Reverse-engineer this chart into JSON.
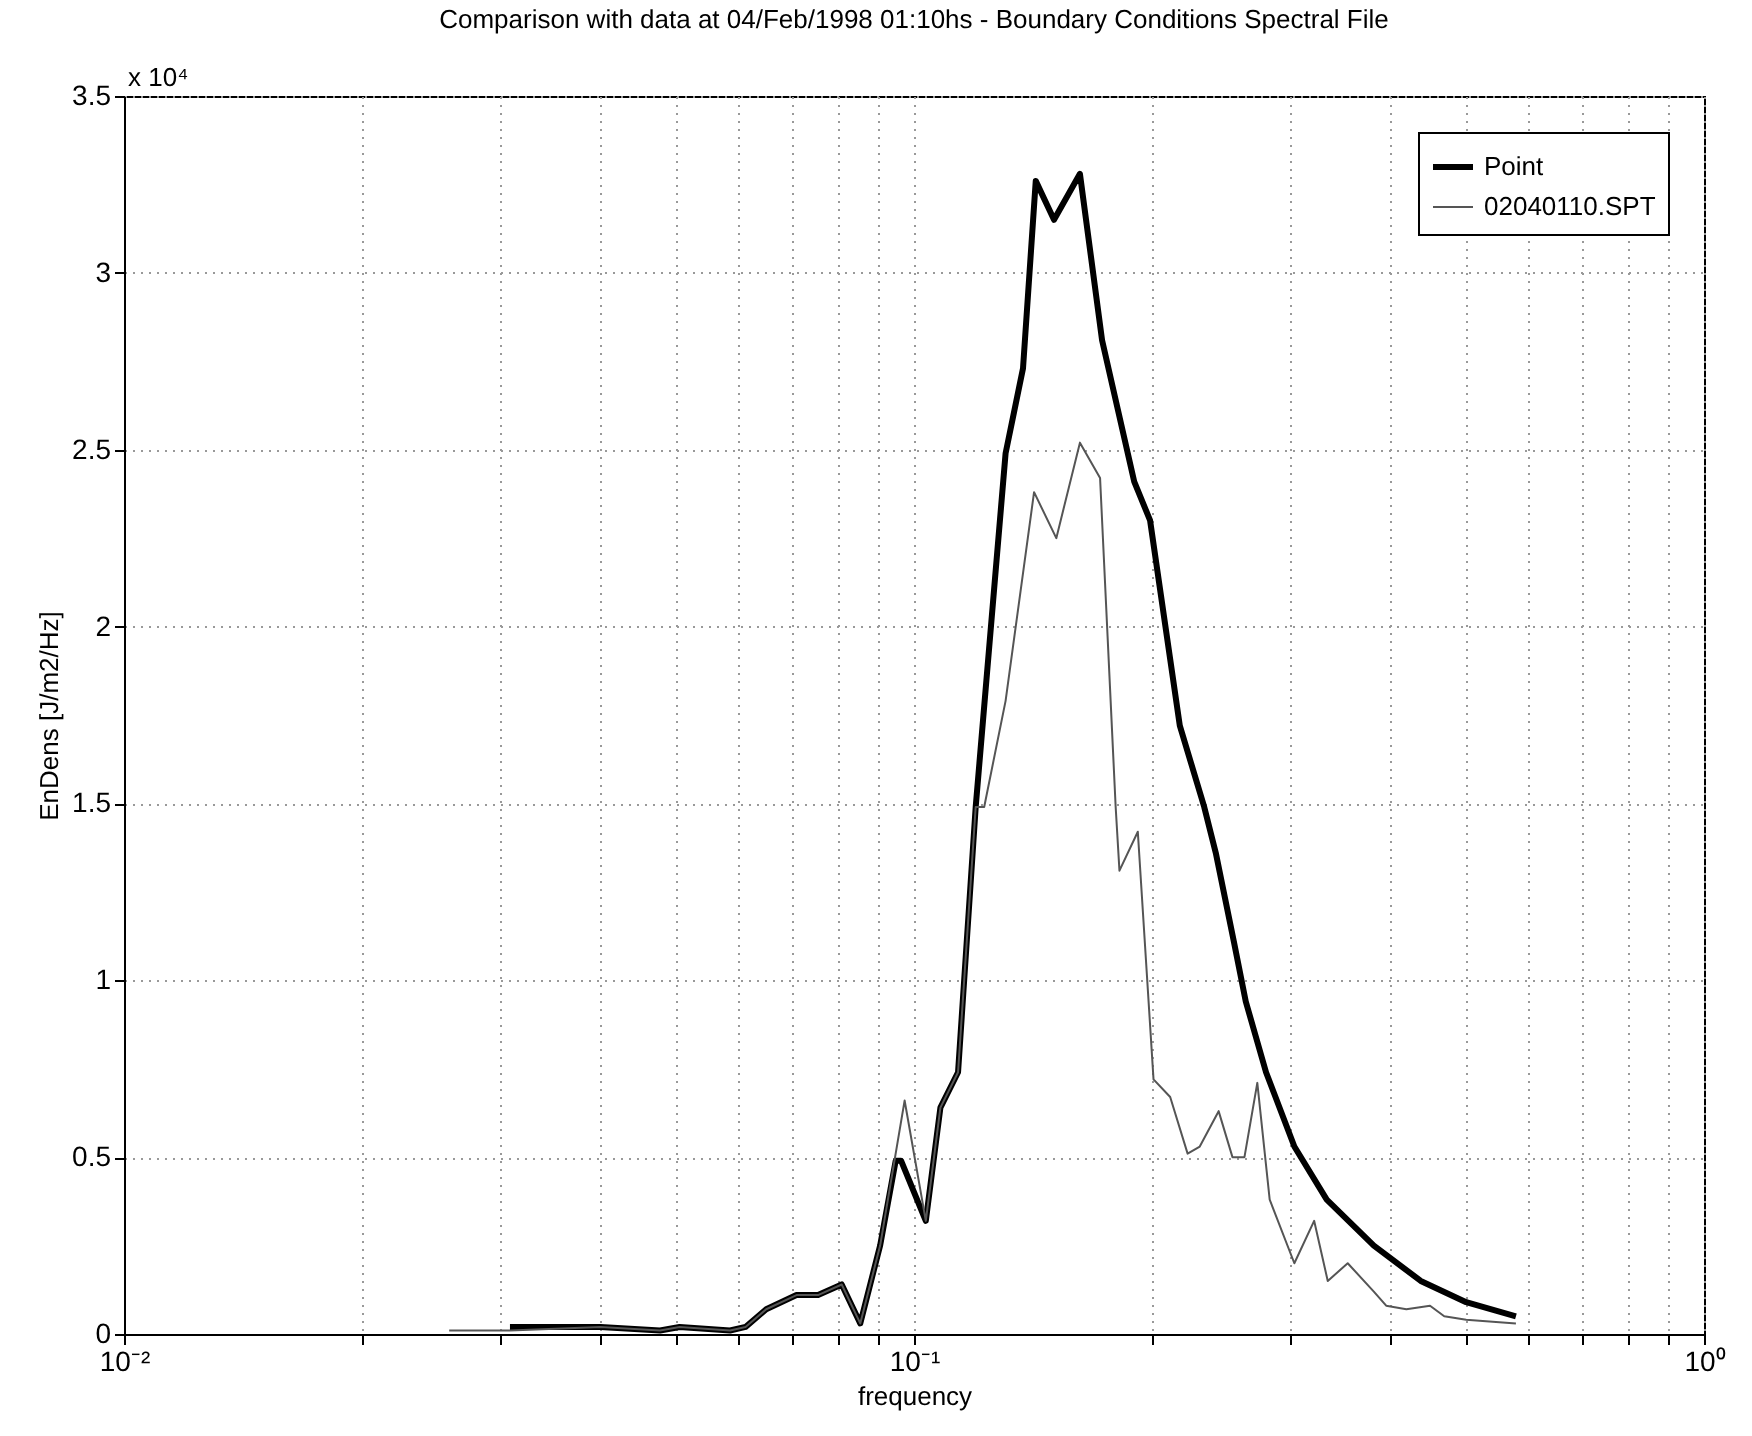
{
  "chart_data": {
    "type": "line",
    "title": "Comparison with data at 04/Feb/1998 01:10hs - Boundary Conditions Spectral File",
    "xlabel": "frequency",
    "ylabel": "EnDens [J/m2/Hz]",
    "annotations": [
      "x 10⁴"
    ],
    "log": "x",
    "xlim": [
      0.01,
      1
    ],
    "ylim": [
      0,
      3.5
    ],
    "xticks": [
      {
        "value": 0.01,
        "label": "10⁻²"
      },
      {
        "value": 0.02,
        "label": null
      },
      {
        "value": 0.03,
        "label": null
      },
      {
        "value": 0.04,
        "label": null
      },
      {
        "value": 0.05,
        "label": null
      },
      {
        "value": 0.06,
        "label": null
      },
      {
        "value": 0.07,
        "label": null
      },
      {
        "value": 0.08,
        "label": null
      },
      {
        "value": 0.09,
        "label": null
      },
      {
        "value": 0.1,
        "label": "10⁻¹"
      },
      {
        "value": 0.2,
        "label": null
      },
      {
        "value": 0.3,
        "label": null
      },
      {
        "value": 0.4,
        "label": null
      },
      {
        "value": 0.5,
        "label": null
      },
      {
        "value": 0.6,
        "label": null
      },
      {
        "value": 0.7,
        "label": null
      },
      {
        "value": 0.8,
        "label": null
      },
      {
        "value": 0.9,
        "label": null
      },
      {
        "value": 1,
        "label": "10⁰"
      }
    ],
    "yticks": [
      0,
      0.5,
      1,
      1.5,
      2,
      2.5,
      3,
      3.5
    ],
    "grid": true,
    "legend": "top right",
    "marker": "none",
    "line_style": "solid",
    "series": [
      {
        "name": "Point",
        "color": "#000000",
        "x": [
          0.0308,
          0.0401,
          0.0477,
          0.0505,
          0.0585,
          0.0612,
          0.065,
          0.071,
          0.0756,
          0.081,
          0.0855,
          0.0906,
          0.0948,
          0.0963,
          0.1035,
          0.108,
          0.1137,
          0.1197,
          0.1306,
          0.1374,
          0.1426,
          0.1504,
          0.1622,
          0.173,
          0.19,
          0.199,
          0.217,
          0.233,
          0.241,
          0.254,
          0.263,
          0.279,
          0.303,
          0.333,
          0.382,
          0.438,
          0.5,
          0.578
        ],
        "values": [
          0.02,
          0.02,
          0.01,
          0.02,
          0.01,
          0.02,
          0.07,
          0.11,
          0.11,
          0.14,
          0.03,
          0.25,
          0.49,
          0.49,
          0.32,
          0.64,
          0.74,
          1.49,
          2.49,
          2.73,
          3.26,
          3.15,
          3.28,
          2.81,
          2.41,
          2.3,
          1.72,
          1.49,
          1.36,
          1.11,
          0.94,
          0.74,
          0.53,
          0.38,
          0.25,
          0.15,
          0.09,
          0.05
        ]
      },
      {
        "name": "02040110.SPT",
        "color": "#555555",
        "x": [
          0.0258,
          0.0308,
          0.0401,
          0.0477,
          0.0505,
          0.0585,
          0.0612,
          0.065,
          0.071,
          0.0756,
          0.081,
          0.0855,
          0.0906,
          0.0973,
          0.1035,
          0.108,
          0.1137,
          0.1197,
          0.1227,
          0.1306,
          0.1419,
          0.1514,
          0.1622,
          0.172,
          0.18,
          0.182,
          0.192,
          0.201,
          0.211,
          0.222,
          0.23,
          0.243,
          0.253,
          0.262,
          0.272,
          0.282,
          0.303,
          0.321,
          0.334,
          0.354,
          0.382,
          0.396,
          0.42,
          0.45,
          0.469,
          0.5,
          0.578
        ],
        "values": [
          0.01,
          0.01,
          0.02,
          0.01,
          0.02,
          0.01,
          0.02,
          0.07,
          0.11,
          0.11,
          0.14,
          0.03,
          0.25,
          0.66,
          0.32,
          0.64,
          0.74,
          1.49,
          1.49,
          1.79,
          2.38,
          2.25,
          2.52,
          2.42,
          1.49,
          1.31,
          1.42,
          0.72,
          0.67,
          0.51,
          0.53,
          0.63,
          0.5,
          0.5,
          0.71,
          0.38,
          0.2,
          0.32,
          0.15,
          0.2,
          0.12,
          0.08,
          0.07,
          0.08,
          0.05,
          0.04,
          0.03
        ]
      }
    ]
  }
}
